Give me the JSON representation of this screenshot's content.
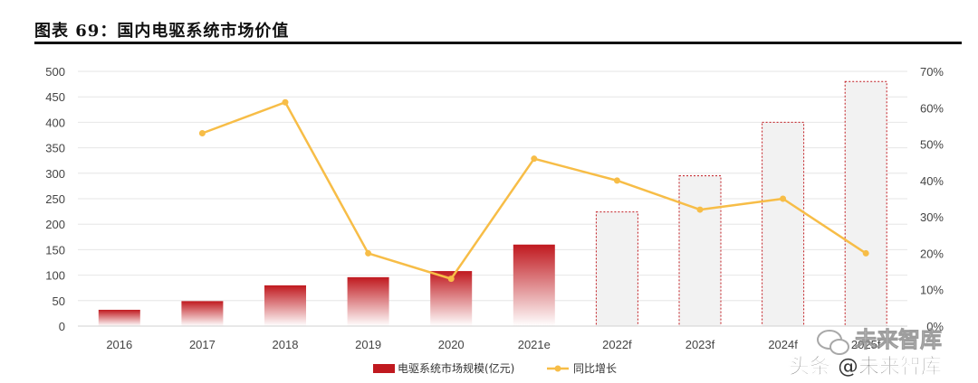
{
  "page": {
    "title": "图表 69：国内电驱系统市场价值"
  },
  "colors": {
    "bar_actual_top": "#c0191f",
    "bar_actual_bottom": "#ffffff",
    "bar_forecast_fill": "#f2f2f2",
    "bar_forecast_border": "#c0191f",
    "line": "#f7bd47",
    "grid": "#e6e6e6"
  },
  "chart_data": {
    "type": "bar+line",
    "categories": [
      "2016",
      "2017",
      "2018",
      "2019",
      "2020",
      "2021e",
      "2022f",
      "2023f",
      "2024f",
      "2025f"
    ],
    "forecast_from_index": 6,
    "series": [
      {
        "name": "电驱系统市场规模(亿元)",
        "type": "bar",
        "axis": "left",
        "values": [
          32,
          49,
          80,
          96,
          108,
          160,
          224,
          295,
          400,
          480
        ]
      },
      {
        "name": "同比增长",
        "type": "line",
        "axis": "right",
        "values": [
          null,
          0.53,
          0.615,
          0.2,
          0.13,
          0.46,
          0.4,
          0.32,
          0.35,
          0.2
        ]
      }
    ],
    "y_left": {
      "min": 0,
      "max": 500,
      "step": 50,
      "ticks": [
        "0",
        "50",
        "100",
        "150",
        "200",
        "250",
        "300",
        "350",
        "400",
        "450",
        "500"
      ]
    },
    "y_right": {
      "min": 0,
      "max": 0.7,
      "step": 0.1,
      "ticks": [
        "0%",
        "10%",
        "20%",
        "30%",
        "40%",
        "50%",
        "60%",
        "70%"
      ]
    },
    "grid": true,
    "legend_position": "bottom"
  },
  "watermark": {
    "upper": "未来智库",
    "lower": "头条 @未来智库"
  }
}
